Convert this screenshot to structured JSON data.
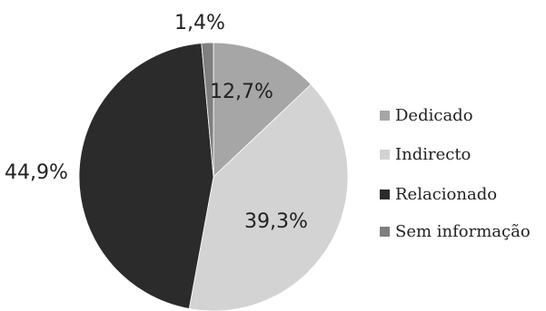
{
  "chart_data": {
    "type": "pie",
    "start_position": "top",
    "direction": "clockwise",
    "slices": [
      {
        "label": "Dedicado",
        "value": 12.7,
        "display": "12,7%",
        "color": "#a6a6a6"
      },
      {
        "label": "Indirecto",
        "value": 39.3,
        "display": "39,3%",
        "color": "#d3d3d3"
      },
      {
        "label": "Relacionado",
        "value": 44.9,
        "display": "44,9%",
        "color": "#2b2b2b"
      },
      {
        "label": "Sem informação",
        "value": 1.4,
        "display": "1,4%",
        "color": "#7f7f7f"
      }
    ],
    "legend_placement": "right"
  }
}
